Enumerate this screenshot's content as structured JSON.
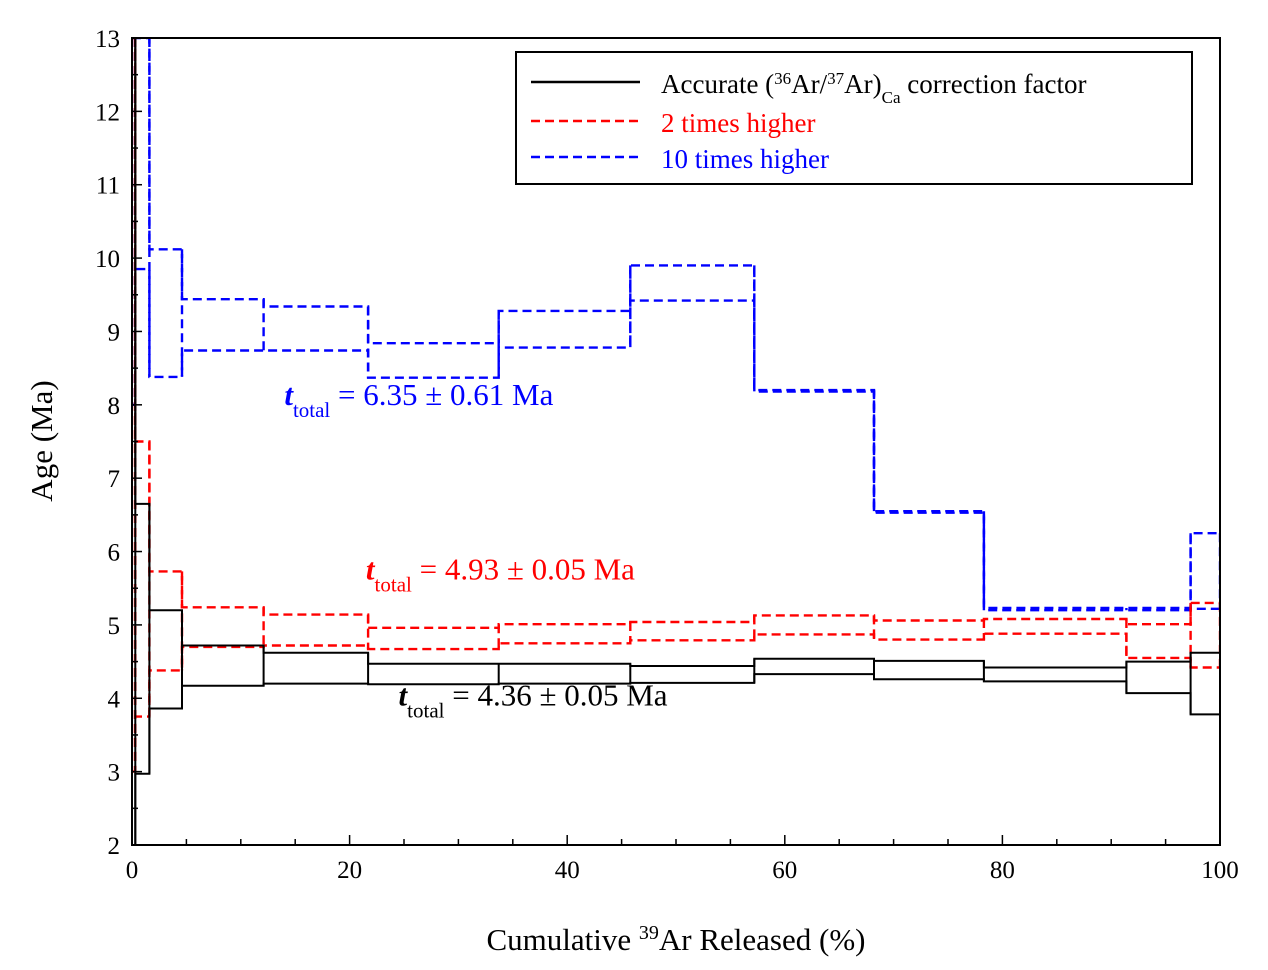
{
  "chart_data": {
    "type": "line",
    "subtype": "age-spectrum step plot",
    "xlabel_parts": [
      "Cumulative ",
      "39",
      "Ar Released (%)"
    ],
    "ylabel": "Age (Ma)",
    "xlim": [
      0,
      100
    ],
    "ylim": [
      2,
      13
    ],
    "x_ticks": [
      0,
      20,
      40,
      60,
      80,
      100
    ],
    "y_ticks": [
      2,
      3,
      4,
      5,
      6,
      7,
      8,
      9,
      10,
      11,
      12,
      13
    ],
    "grid": false,
    "legend_position": "top-right",
    "colors": {
      "accurate": "#000000",
      "two_times": "#ff0000",
      "ten_times": "#0000ff"
    },
    "series": [
      {
        "id": "accurate",
        "legend_parts": [
          "Accurate (",
          "36",
          "Ar/",
          "37",
          "Ar)",
          "Ca",
          " correction factor"
        ],
        "line_style": "solid",
        "boundaries": [
          0,
          0.3,
          1.6,
          4.6,
          12.1,
          21.7,
          33.7,
          45.8,
          57.2,
          68.2,
          78.3,
          91.4,
          97.3,
          100
        ],
        "upper": [
          13.0,
          6.65,
          5.2,
          4.72,
          4.62,
          4.47,
          4.47,
          4.44,
          4.54,
          4.51,
          4.42,
          4.5,
          4.62
        ],
        "lower": [
          2.0,
          2.97,
          3.86,
          4.17,
          4.2,
          4.19,
          4.2,
          4.21,
          4.33,
          4.26,
          4.23,
          4.07,
          3.78
        ]
      },
      {
        "id": "two_times",
        "legend": "2 times higher",
        "line_style": "dashed",
        "boundaries": [
          0,
          0.3,
          1.6,
          4.6,
          12.1,
          21.7,
          33.7,
          45.8,
          57.2,
          68.2,
          78.3,
          91.4,
          97.3,
          100
        ],
        "upper": [
          13.0,
          7.5,
          5.73,
          5.24,
          5.14,
          4.96,
          5.01,
          5.04,
          5.13,
          5.06,
          5.08,
          5.01,
          5.3
        ],
        "lower": [
          3.0,
          3.75,
          4.38,
          4.7,
          4.72,
          4.67,
          4.75,
          4.79,
          4.87,
          4.8,
          4.88,
          4.55,
          4.42
        ]
      },
      {
        "id": "ten_times",
        "legend": "10 times higher",
        "line_style": "dashed",
        "boundaries": [
          0,
          0.3,
          1.6,
          4.6,
          12.1,
          21.7,
          33.7,
          45.8,
          57.2,
          68.2,
          78.3,
          91.4,
          97.3,
          100
        ],
        "upper": [
          13.0,
          13.0,
          10.12,
          9.44,
          9.34,
          8.84,
          9.28,
          9.9,
          8.2,
          6.55,
          5.23,
          5.23,
          6.25
        ],
        "lower": [
          8.0,
          9.85,
          8.38,
          8.74,
          8.74,
          8.37,
          8.78,
          9.42,
          8.18,
          6.53,
          5.2,
          5.2,
          5.22
        ]
      }
    ],
    "annotations": [
      {
        "series": "ten_times",
        "italic": "t",
        "subscript": "total",
        "text": " = 6.35 ± 0.61 Ma",
        "x": 14,
        "y": 8.0
      },
      {
        "series": "two_times",
        "italic": "t",
        "subscript": "total",
        "text": " = 4.93 ± 0.05 Ma",
        "x": 21.5,
        "y": 5.62
      },
      {
        "series": "accurate",
        "italic": "t",
        "subscript": "total",
        "text": " = 4.36 ± 0.05 Ma",
        "x": 24.5,
        "y": 3.9
      }
    ]
  }
}
